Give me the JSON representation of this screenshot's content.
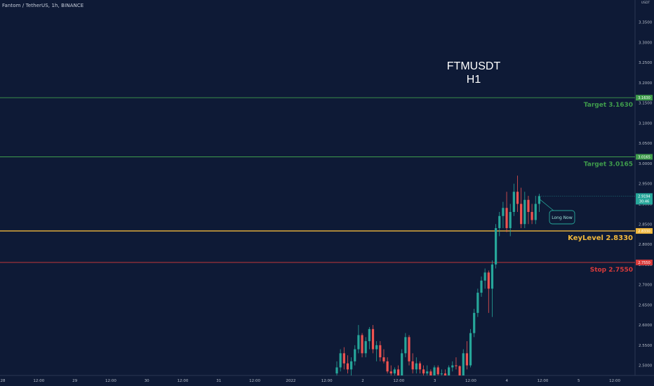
{
  "symbol_line": "Fantom / TetherUS, 1h, BINANCE",
  "currency": "USDT",
  "title_line1": "FTMUSDT",
  "title_line2": "H1",
  "chart_data": {
    "type": "candlestick",
    "ylim": [
      2.475,
      3.405
    ],
    "y_ticks": [
      "3.3500",
      "3.3000",
      "3.2500",
      "3.2000",
      "3.1500",
      "3.1000",
      "3.0500",
      "3.0000",
      "2.9500",
      "2.9000",
      "2.8500",
      "2.8000",
      "2.7500",
      "2.7000",
      "2.6500",
      "2.6000",
      "2.5500",
      "2.5000"
    ],
    "x_ticks": [
      "28",
      "12:00",
      "29",
      "12:00",
      "30",
      "12:00",
      "31",
      "12:00",
      "2022",
      "12:00",
      "2",
      "12:00",
      "3",
      "12:00",
      "4",
      "12:00",
      "5",
      "12:00"
    ],
    "levels": [
      {
        "label": "Target 3.1630",
        "value": 3.163,
        "badge": "3.1630",
        "color": "#3f9c4c"
      },
      {
        "label": "Target 3.0165",
        "value": 3.0165,
        "badge": "3.0165",
        "color": "#3f9c4c"
      },
      {
        "label": "KeyLevel 2.8330",
        "value": 2.833,
        "badge": "2.8330",
        "color": "#f0b73c"
      },
      {
        "label": "Stop 2.7550",
        "value": 2.755,
        "badge": "2.7550",
        "color": "#d83a3a"
      }
    ],
    "last_price": {
      "value": 2.9194,
      "label": "2.9194",
      "countdown": "30:46",
      "color": "#26a69a"
    },
    "annotation": "Long Now",
    "candles": [
      {
        "o": 2.48,
        "h": 2.51,
        "l": 2.47,
        "c": 2.495
      },
      {
        "o": 2.495,
        "h": 2.54,
        "l": 2.485,
        "c": 2.53
      },
      {
        "o": 2.53,
        "h": 2.545,
        "l": 2.49,
        "c": 2.505
      },
      {
        "o": 2.505,
        "h": 2.525,
        "l": 2.48,
        "c": 2.49
      },
      {
        "o": 2.49,
        "h": 2.52,
        "l": 2.475,
        "c": 2.51
      },
      {
        "o": 2.51,
        "h": 2.55,
        "l": 2.5,
        "c": 2.54
      },
      {
        "o": 2.54,
        "h": 2.6,
        "l": 2.53,
        "c": 2.575
      },
      {
        "o": 2.575,
        "h": 2.58,
        "l": 2.52,
        "c": 2.53
      },
      {
        "o": 2.53,
        "h": 2.57,
        "l": 2.52,
        "c": 2.56
      },
      {
        "o": 2.56,
        "h": 2.595,
        "l": 2.54,
        "c": 2.59
      },
      {
        "o": 2.59,
        "h": 2.6,
        "l": 2.53,
        "c": 2.54
      },
      {
        "o": 2.54,
        "h": 2.56,
        "l": 2.51,
        "c": 2.55
      },
      {
        "o": 2.55,
        "h": 2.56,
        "l": 2.51,
        "c": 2.52
      },
      {
        "o": 2.52,
        "h": 2.54,
        "l": 2.505,
        "c": 2.51
      },
      {
        "o": 2.51,
        "h": 2.52,
        "l": 2.48,
        "c": 2.485
      },
      {
        "o": 2.485,
        "h": 2.5,
        "l": 2.475,
        "c": 2.48
      },
      {
        "o": 2.48,
        "h": 2.495,
        "l": 2.47,
        "c": 2.49
      },
      {
        "o": 2.49,
        "h": 2.5,
        "l": 2.47,
        "c": 2.475
      },
      {
        "o": 2.475,
        "h": 2.54,
        "l": 2.47,
        "c": 2.53
      },
      {
        "o": 2.53,
        "h": 2.58,
        "l": 2.52,
        "c": 2.57
      },
      {
        "o": 2.57,
        "h": 2.575,
        "l": 2.5,
        "c": 2.51
      },
      {
        "o": 2.51,
        "h": 2.53,
        "l": 2.48,
        "c": 2.49
      },
      {
        "o": 2.49,
        "h": 2.52,
        "l": 2.48,
        "c": 2.505
      },
      {
        "o": 2.505,
        "h": 2.51,
        "l": 2.48,
        "c": 2.49
      },
      {
        "o": 2.49,
        "h": 2.5,
        "l": 2.47,
        "c": 2.48
      },
      {
        "o": 2.48,
        "h": 2.5,
        "l": 2.47,
        "c": 2.485
      },
      {
        "o": 2.485,
        "h": 2.49,
        "l": 2.47,
        "c": 2.475
      },
      {
        "o": 2.475,
        "h": 2.5,
        "l": 2.47,
        "c": 2.495
      },
      {
        "o": 2.495,
        "h": 2.5,
        "l": 2.47,
        "c": 2.478
      },
      {
        "o": 2.478,
        "h": 2.49,
        "l": 2.465,
        "c": 2.48
      },
      {
        "o": 2.48,
        "h": 2.49,
        "l": 2.465,
        "c": 2.472
      },
      {
        "o": 2.472,
        "h": 2.5,
        "l": 2.465,
        "c": 2.495
      },
      {
        "o": 2.495,
        "h": 2.51,
        "l": 2.485,
        "c": 2.5
      },
      {
        "o": 2.5,
        "h": 2.52,
        "l": 2.49,
        "c": 2.498
      },
      {
        "o": 2.498,
        "h": 2.5,
        "l": 2.47,
        "c": 2.475
      },
      {
        "o": 2.475,
        "h": 2.54,
        "l": 2.465,
        "c": 2.53
      },
      {
        "o": 2.53,
        "h": 2.56,
        "l": 2.49,
        "c": 2.5
      },
      {
        "o": 2.5,
        "h": 2.59,
        "l": 2.495,
        "c": 2.58
      },
      {
        "o": 2.58,
        "h": 2.64,
        "l": 2.57,
        "c": 2.63
      },
      {
        "o": 2.63,
        "h": 2.69,
        "l": 2.62,
        "c": 2.68
      },
      {
        "o": 2.68,
        "h": 2.72,
        "l": 2.67,
        "c": 2.71
      },
      {
        "o": 2.71,
        "h": 2.74,
        "l": 2.69,
        "c": 2.73
      },
      {
        "o": 2.73,
        "h": 2.735,
        "l": 2.63,
        "c": 2.69
      },
      {
        "o": 2.69,
        "h": 2.76,
        "l": 2.62,
        "c": 2.75
      },
      {
        "o": 2.75,
        "h": 2.85,
        "l": 2.74,
        "c": 2.84
      },
      {
        "o": 2.84,
        "h": 2.88,
        "l": 2.82,
        "c": 2.87
      },
      {
        "o": 2.87,
        "h": 2.905,
        "l": 2.84,
        "c": 2.89
      },
      {
        "o": 2.89,
        "h": 2.93,
        "l": 2.83,
        "c": 2.84
      },
      {
        "o": 2.84,
        "h": 2.9,
        "l": 2.82,
        "c": 2.88
      },
      {
        "o": 2.88,
        "h": 2.95,
        "l": 2.87,
        "c": 2.93
      },
      {
        "o": 2.93,
        "h": 2.97,
        "l": 2.88,
        "c": 2.9
      },
      {
        "o": 2.9,
        "h": 2.94,
        "l": 2.84,
        "c": 2.85
      },
      {
        "o": 2.85,
        "h": 2.93,
        "l": 2.84,
        "c": 2.91
      },
      {
        "o": 2.91,
        "h": 2.92,
        "l": 2.85,
        "c": 2.88
      },
      {
        "o": 2.88,
        "h": 2.9,
        "l": 2.85,
        "c": 2.86
      },
      {
        "o": 2.86,
        "h": 2.92,
        "l": 2.85,
        "c": 2.9
      },
      {
        "o": 2.9,
        "h": 2.925,
        "l": 2.88,
        "c": 2.9194
      }
    ]
  }
}
